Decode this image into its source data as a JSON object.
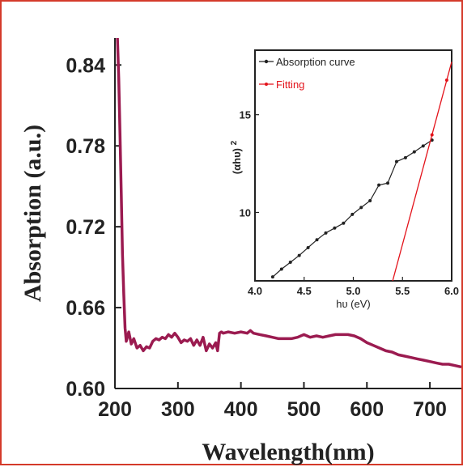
{
  "chart_data": [
    {
      "type": "line",
      "xlabel": "Wavelength(nm)",
      "ylabel": "Absorption (a.u.)",
      "xlim": [
        200,
        750
      ],
      "ylim": [
        0.6,
        0.86
      ],
      "xticks": [
        200,
        300,
        400,
        500,
        600,
        700
      ],
      "yticks": [
        0.6,
        0.66,
        0.72,
        0.78,
        0.84
      ],
      "ytick_labels": [
        "0.60",
        "0.66",
        "0.72",
        "0.78",
        "0.84"
      ],
      "grid": false,
      "color": "#9b1b50",
      "series": [
        {
          "x": [
            204,
            206,
            208,
            210,
            212,
            214,
            216,
            218,
            222,
            226,
            230,
            235,
            240,
            245,
            250,
            255,
            260,
            265,
            270,
            275,
            280,
            285,
            290,
            295,
            300,
            305,
            310,
            315,
            320,
            325,
            330,
            335,
            340,
            345,
            350,
            355,
            360,
            363,
            366,
            369,
            372,
            380,
            390,
            400,
            410,
            415,
            420,
            430,
            440,
            450,
            460,
            470,
            480,
            490,
            500,
            510,
            520,
            530,
            540,
            550,
            560,
            570,
            580,
            590,
            600,
            610,
            620,
            630,
            640,
            650,
            660,
            670,
            680,
            690,
            700,
            710,
            720,
            730,
            740,
            750
          ],
          "y": [
            0.86,
            0.83,
            0.79,
            0.745,
            0.7,
            0.67,
            0.645,
            0.635,
            0.642,
            0.633,
            0.637,
            0.63,
            0.632,
            0.628,
            0.631,
            0.63,
            0.635,
            0.637,
            0.636,
            0.638,
            0.637,
            0.64,
            0.638,
            0.641,
            0.638,
            0.634,
            0.636,
            0.635,
            0.637,
            0.632,
            0.636,
            0.632,
            0.638,
            0.628,
            0.633,
            0.63,
            0.634,
            0.628,
            0.641,
            0.642,
            0.641,
            0.642,
            0.641,
            0.642,
            0.641,
            0.643,
            0.641,
            0.64,
            0.639,
            0.638,
            0.637,
            0.637,
            0.637,
            0.638,
            0.64,
            0.638,
            0.639,
            0.638,
            0.639,
            0.64,
            0.64,
            0.64,
            0.639,
            0.637,
            0.634,
            0.632,
            0.63,
            0.628,
            0.627,
            0.625,
            0.624,
            0.623,
            0.622,
            0.621,
            0.62,
            0.619,
            0.618,
            0.618,
            0.617,
            0.616
          ]
        }
      ]
    },
    {
      "type": "line",
      "xlabel": "hυ (eV)",
      "ylabel": "(αhυ)",
      "ylabel_superscript": "2",
      "xlim": [
        4.0,
        6.0
      ],
      "ylim": [
        6.5,
        18.3
      ],
      "xticks": [
        4.0,
        4.5,
        5.0,
        5.5,
        6.0
      ],
      "xtick_labels": [
        "4.0",
        "4.5",
        "5.0",
        "5.5",
        "6.0"
      ],
      "yticks": [
        10,
        15
      ],
      "ytick_labels": [
        "10",
        "15"
      ],
      "grid": false,
      "legend": "top-left",
      "series": [
        {
          "name": "Absorption curve",
          "color": "#222222",
          "x": [
            4.18,
            4.27,
            4.36,
            4.45,
            4.54,
            4.63,
            4.72,
            4.81,
            4.9,
            4.99,
            5.08,
            5.17,
            5.26,
            5.35,
            5.44,
            5.53,
            5.62,
            5.71,
            5.8
          ],
          "y": [
            6.7,
            7.1,
            7.45,
            7.8,
            8.2,
            8.6,
            8.95,
            9.2,
            9.45,
            9.9,
            10.25,
            10.6,
            11.4,
            11.5,
            12.6,
            12.8,
            13.1,
            13.4,
            13.7
          ]
        },
        {
          "name": "Fitting",
          "color": "#e3121a",
          "x": [
            5.4,
            6.0
          ],
          "y": [
            6.5,
            17.7
          ]
        }
      ]
    }
  ]
}
